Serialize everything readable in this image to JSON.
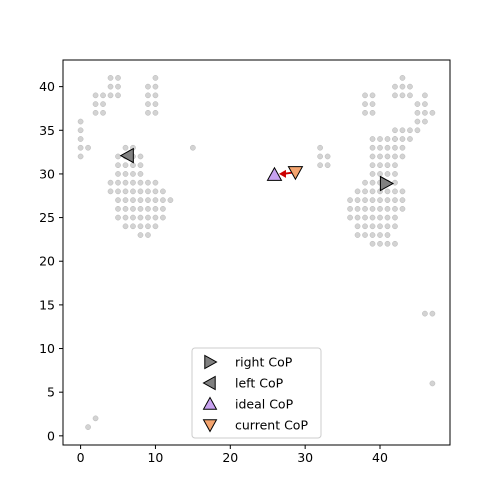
{
  "chart_data": {
    "type": "scatter",
    "title": "",
    "xlabel": "",
    "ylabel": "",
    "xlim": [
      -2.35,
      49.35
    ],
    "ylim": [
      -1.05,
      43.05
    ],
    "x_ticks": [
      0,
      10,
      20,
      30,
      40
    ],
    "y_ticks": [
      0,
      5,
      10,
      15,
      20,
      25,
      30,
      35,
      40
    ],
    "grid": false,
    "legend_position": "lower-center",
    "pressure_sensors": {
      "color": "#d3d3d3",
      "points": [
        [
          1,
          1
        ],
        [
          2,
          2
        ],
        [
          47,
          6
        ],
        [
          46,
          14
        ],
        [
          47,
          14
        ],
        [
          15,
          33
        ],
        [
          4,
          41
        ],
        [
          5,
          41
        ],
        [
          4,
          40
        ],
        [
          5,
          40
        ],
        [
          4,
          39
        ],
        [
          5,
          39
        ],
        [
          10,
          41
        ],
        [
          9,
          40
        ],
        [
          10,
          40
        ],
        [
          9,
          39
        ],
        [
          10,
          39
        ],
        [
          9,
          38
        ],
        [
          10,
          38
        ],
        [
          9,
          37
        ],
        [
          10,
          37
        ],
        [
          2,
          39
        ],
        [
          3,
          39
        ],
        [
          2,
          38
        ],
        [
          3,
          38
        ],
        [
          2,
          37
        ],
        [
          3,
          37
        ],
        [
          0,
          36
        ],
        [
          0,
          35
        ],
        [
          0,
          34
        ],
        [
          0,
          33
        ],
        [
          1,
          33
        ],
        [
          0,
          32
        ],
        [
          6,
          33
        ],
        [
          7,
          33
        ],
        [
          5,
          32
        ],
        [
          6,
          32
        ],
        [
          7,
          32
        ],
        [
          8,
          32
        ],
        [
          5,
          31
        ],
        [
          6,
          31
        ],
        [
          7,
          31
        ],
        [
          8,
          31
        ],
        [
          5,
          30
        ],
        [
          6,
          30
        ],
        [
          7,
          30
        ],
        [
          8,
          30
        ],
        [
          4,
          29
        ],
        [
          5,
          29
        ],
        [
          6,
          29
        ],
        [
          7,
          29
        ],
        [
          8,
          29
        ],
        [
          9,
          29
        ],
        [
          10,
          29
        ],
        [
          4,
          28
        ],
        [
          5,
          28
        ],
        [
          6,
          28
        ],
        [
          7,
          28
        ],
        [
          8,
          28
        ],
        [
          9,
          28
        ],
        [
          10,
          28
        ],
        [
          11,
          28
        ],
        [
          5,
          27
        ],
        [
          6,
          27
        ],
        [
          7,
          27
        ],
        [
          8,
          27
        ],
        [
          9,
          27
        ],
        [
          10,
          27
        ],
        [
          11,
          27
        ],
        [
          12,
          27
        ],
        [
          5,
          26
        ],
        [
          6,
          26
        ],
        [
          7,
          26
        ],
        [
          8,
          26
        ],
        [
          9,
          26
        ],
        [
          10,
          26
        ],
        [
          11,
          26
        ],
        [
          5,
          25
        ],
        [
          6,
          25
        ],
        [
          7,
          25
        ],
        [
          8,
          25
        ],
        [
          9,
          25
        ],
        [
          10,
          25
        ],
        [
          11,
          25
        ],
        [
          6,
          24
        ],
        [
          7,
          24
        ],
        [
          8,
          24
        ],
        [
          9,
          24
        ],
        [
          10,
          24
        ],
        [
          8,
          23
        ],
        [
          9,
          23
        ],
        [
          43,
          41
        ],
        [
          42,
          40
        ],
        [
          43,
          40
        ],
        [
          44,
          40
        ],
        [
          42,
          39
        ],
        [
          43,
          39
        ],
        [
          44,
          39
        ],
        [
          38,
          39
        ],
        [
          39,
          39
        ],
        [
          38,
          38
        ],
        [
          39,
          38
        ],
        [
          38,
          37
        ],
        [
          39,
          37
        ],
        [
          46,
          39
        ],
        [
          45,
          38
        ],
        [
          46,
          38
        ],
        [
          45,
          37
        ],
        [
          46,
          37
        ],
        [
          47,
          37
        ],
        [
          45,
          36
        ],
        [
          46,
          36
        ],
        [
          44,
          35
        ],
        [
          45,
          35
        ],
        [
          44,
          34
        ],
        [
          42,
          35
        ],
        [
          43,
          35
        ],
        [
          42,
          34
        ],
        [
          43,
          34
        ],
        [
          32,
          33
        ],
        [
          32,
          32
        ],
        [
          33,
          32
        ],
        [
          32,
          31
        ],
        [
          33,
          31
        ],
        [
          39,
          34
        ],
        [
          40,
          34
        ],
        [
          41,
          34
        ],
        [
          42,
          34
        ],
        [
          39,
          33
        ],
        [
          40,
          33
        ],
        [
          41,
          33
        ],
        [
          42,
          33
        ],
        [
          43,
          33
        ],
        [
          39,
          32
        ],
        [
          40,
          32
        ],
        [
          41,
          32
        ],
        [
          42,
          32
        ],
        [
          43,
          32
        ],
        [
          39,
          31
        ],
        [
          40,
          31
        ],
        [
          41,
          31
        ],
        [
          42,
          31
        ],
        [
          39,
          30
        ],
        [
          40,
          30
        ],
        [
          41,
          30
        ],
        [
          42,
          30
        ],
        [
          38,
          29
        ],
        [
          39,
          29
        ],
        [
          40,
          29
        ],
        [
          41,
          29
        ],
        [
          42,
          29
        ],
        [
          37,
          28
        ],
        [
          38,
          28
        ],
        [
          39,
          28
        ],
        [
          40,
          28
        ],
        [
          41,
          28
        ],
        [
          42,
          28
        ],
        [
          43,
          28
        ],
        [
          36,
          27
        ],
        [
          37,
          27
        ],
        [
          38,
          27
        ],
        [
          39,
          27
        ],
        [
          40,
          27
        ],
        [
          41,
          27
        ],
        [
          42,
          27
        ],
        [
          43,
          27
        ],
        [
          36,
          26
        ],
        [
          37,
          26
        ],
        [
          38,
          26
        ],
        [
          39,
          26
        ],
        [
          40,
          26
        ],
        [
          41,
          26
        ],
        [
          42,
          26
        ],
        [
          43,
          26
        ],
        [
          36,
          25
        ],
        [
          37,
          25
        ],
        [
          38,
          25
        ],
        [
          39,
          25
        ],
        [
          40,
          25
        ],
        [
          41,
          25
        ],
        [
          42,
          25
        ],
        [
          37,
          24
        ],
        [
          38,
          24
        ],
        [
          39,
          24
        ],
        [
          40,
          24
        ],
        [
          41,
          24
        ],
        [
          42,
          24
        ],
        [
          37,
          23
        ],
        [
          38,
          23
        ],
        [
          39,
          23
        ],
        [
          40,
          23
        ],
        [
          41,
          23
        ],
        [
          39,
          22
        ],
        [
          40,
          22
        ],
        [
          41,
          22
        ],
        [
          42,
          22
        ]
      ]
    },
    "series": [
      {
        "name": "right CoP",
        "marker": "triangle-right",
        "color": "#808080",
        "x": [
          40.8
        ],
        "y": [
          28.9
        ]
      },
      {
        "name": "left CoP",
        "marker": "triangle-left",
        "color": "#808080",
        "x": [
          6.3
        ],
        "y": [
          32.1
        ]
      },
      {
        "name": "ideal CoP",
        "marker": "triangle-up",
        "color": "#c8a2f0",
        "x": [
          25.9
        ],
        "y": [
          29.9
        ]
      },
      {
        "name": "current CoP",
        "marker": "triangle-down",
        "color": "#f4a46e",
        "x": [
          28.7
        ],
        "y": [
          30.2
        ]
      }
    ],
    "arrow": {
      "from": [
        28.7,
        30.2
      ],
      "to": [
        26.5,
        30.0
      ],
      "color": "#cc0000"
    }
  }
}
